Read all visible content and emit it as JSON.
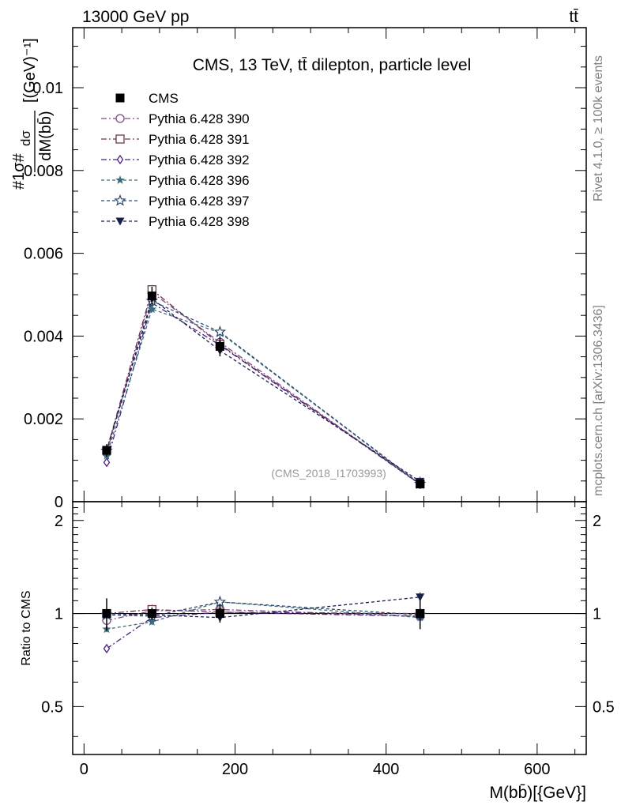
{
  "header": {
    "energy_label": "13000 GeV pp",
    "process_label": "tt̄"
  },
  "side_labels": {
    "rivet": "Rivet 4.1.0, ≥ 100k events",
    "mcplots": "mcplots.cern.ch [arXiv:1306.3436]"
  },
  "chart_data": {
    "type": "line",
    "title": "CMS, 13 TeV, tt̄ dilepton, particle level",
    "watermark": "(CMS_2018_I1703993)",
    "xlabel": "M(bb̄)[{GeV}]",
    "ylabel": "#1/σ# dσ/dM(bb̄) [{GeV}⁻¹]",
    "ylabel_frac_num": "dσ",
    "ylabel_frac_den": "dM(bb̄)",
    "ylabel_prefix": "#1σ#",
    "ylabel_suffix": "[(GeV)⁻¹]",
    "ratio_ylabel": "Ratio to CMS",
    "xlim": [
      -15,
      665
    ],
    "ylim": [
      0,
      0.01145
    ],
    "ratio_ylim": [
      0.35,
      2.3
    ],
    "x_ticks": [
      0,
      200,
      400,
      600
    ],
    "x_tick_labels": [
      "0",
      "200",
      "400",
      "600"
    ],
    "y_ticks": [
      0,
      0.002,
      0.004,
      0.006,
      0.008,
      0.01
    ],
    "y_tick_labels": [
      "0",
      "0.002",
      "0.004",
      "0.006",
      "0.008",
      "0.01"
    ],
    "ratio_ticks": [
      0.5,
      1,
      2
    ],
    "ratio_tick_labels": [
      "0.5",
      "1",
      "2"
    ],
    "x": [
      30,
      90,
      180,
      445
    ],
    "data": {
      "name": "CMS",
      "values": [
        0.00124,
        0.00497,
        0.00375,
        0.00043
      ],
      "errors": [
        0.00015,
        0.00022,
        0.00024,
        5e-05
      ],
      "ratio": [
        1.0,
        1.0,
        1.0,
        1.0
      ],
      "ratio_errors": [
        0.12,
        0.045,
        0.065,
        0.11
      ]
    },
    "series": [
      {
        "name": "Pythia 6.428 390",
        "marker": "circle",
        "dash": "7,3,2,3",
        "color": "#7a4a8c",
        "values": [
          0.00118,
          0.00505,
          0.00385,
          0.00042
        ],
        "ratio": [
          0.95,
          1.02,
          1.03,
          0.98
        ]
      },
      {
        "name": "Pythia 6.428 391",
        "marker": "square",
        "dash": "7,3,2,3",
        "color": "#6e3450",
        "values": [
          0.00124,
          0.00512,
          0.0038,
          0.00043
        ],
        "ratio": [
          1.0,
          1.03,
          1.01,
          1.0
        ]
      },
      {
        "name": "Pythia 6.428 392",
        "marker": "diamond",
        "dash": "7,3,2,3",
        "color": "#4a2080",
        "values": [
          0.00095,
          0.0048,
          0.00378,
          0.00042
        ],
        "ratio": [
          0.77,
          0.97,
          1.01,
          0.98
        ]
      },
      {
        "name": "Pythia 6.428 396",
        "marker": "star-filled",
        "dash": "4,3",
        "color": "#3d6b7a",
        "values": [
          0.00111,
          0.00465,
          0.00408,
          0.00042
        ],
        "ratio": [
          0.89,
          0.94,
          1.09,
          0.97
        ]
      },
      {
        "name": "Pythia 6.428 397",
        "marker": "star-open",
        "dash": "4,3",
        "color": "#2c4a70",
        "values": [
          0.00123,
          0.00485,
          0.0041,
          0.00043
        ],
        "ratio": [
          0.99,
          0.98,
          1.09,
          0.99
        ]
      },
      {
        "name": "Pythia 6.428 398",
        "marker": "triangle-down",
        "dash": "4,3",
        "color": "#1a1f4a",
        "values": [
          0.00124,
          0.0049,
          0.00365,
          0.00049
        ],
        "ratio": [
          1.0,
          0.99,
          0.97,
          1.13
        ]
      }
    ]
  }
}
